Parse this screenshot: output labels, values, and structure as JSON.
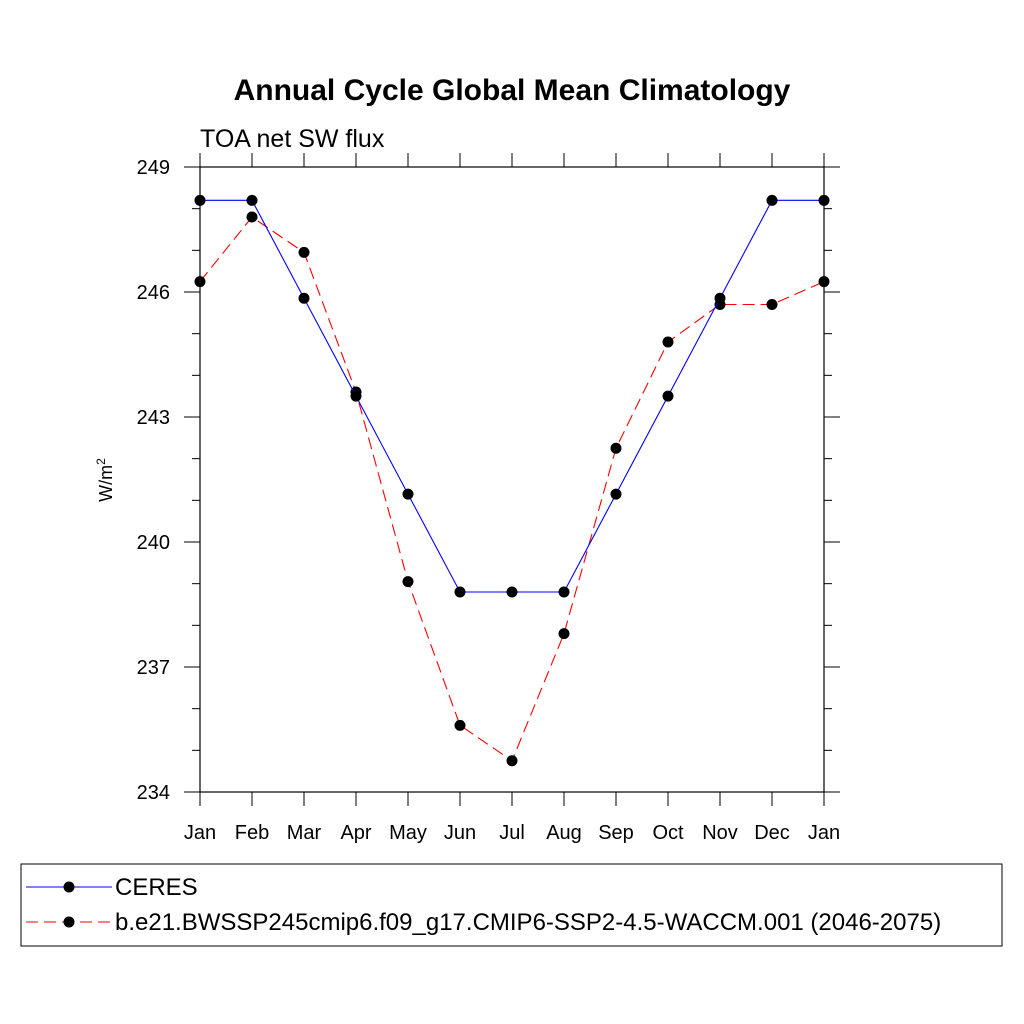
{
  "chart_data": {
    "type": "line",
    "title": "Annual Cycle Global Mean Climatology",
    "subtitle": "TOA net SW flux",
    "xlabel": "",
    "ylabel": "W/m",
    "ylabel_superscript": "2",
    "categories": [
      "Jan",
      "Feb",
      "Mar",
      "Apr",
      "May",
      "Jun",
      "Jul",
      "Aug",
      "Sep",
      "Oct",
      "Nov",
      "Dec",
      "Jan"
    ],
    "ylim": [
      234,
      249
    ],
    "yticks": [
      234,
      237,
      240,
      243,
      246,
      249
    ],
    "grid": false,
    "legend_position": "bottom",
    "series": [
      {
        "name": "CERES",
        "color": "#0000ff",
        "dash": "solid",
        "values": [
          248.2,
          248.2,
          245.85,
          243.5,
          241.15,
          238.8,
          238.8,
          238.8,
          241.15,
          243.5,
          245.85,
          248.2,
          248.2
        ]
      },
      {
        "name": "b.e21.BWSSP245cmip6.f09_g17.CMIP6-SSP2-4.5-WACCM.001 (2046-2075)",
        "color": "#ff0000",
        "dash": "dashed",
        "values": [
          246.25,
          247.8,
          246.95,
          243.6,
          239.05,
          235.6,
          234.75,
          237.8,
          242.25,
          244.8,
          245.7,
          245.7,
          246.25
        ]
      }
    ]
  }
}
